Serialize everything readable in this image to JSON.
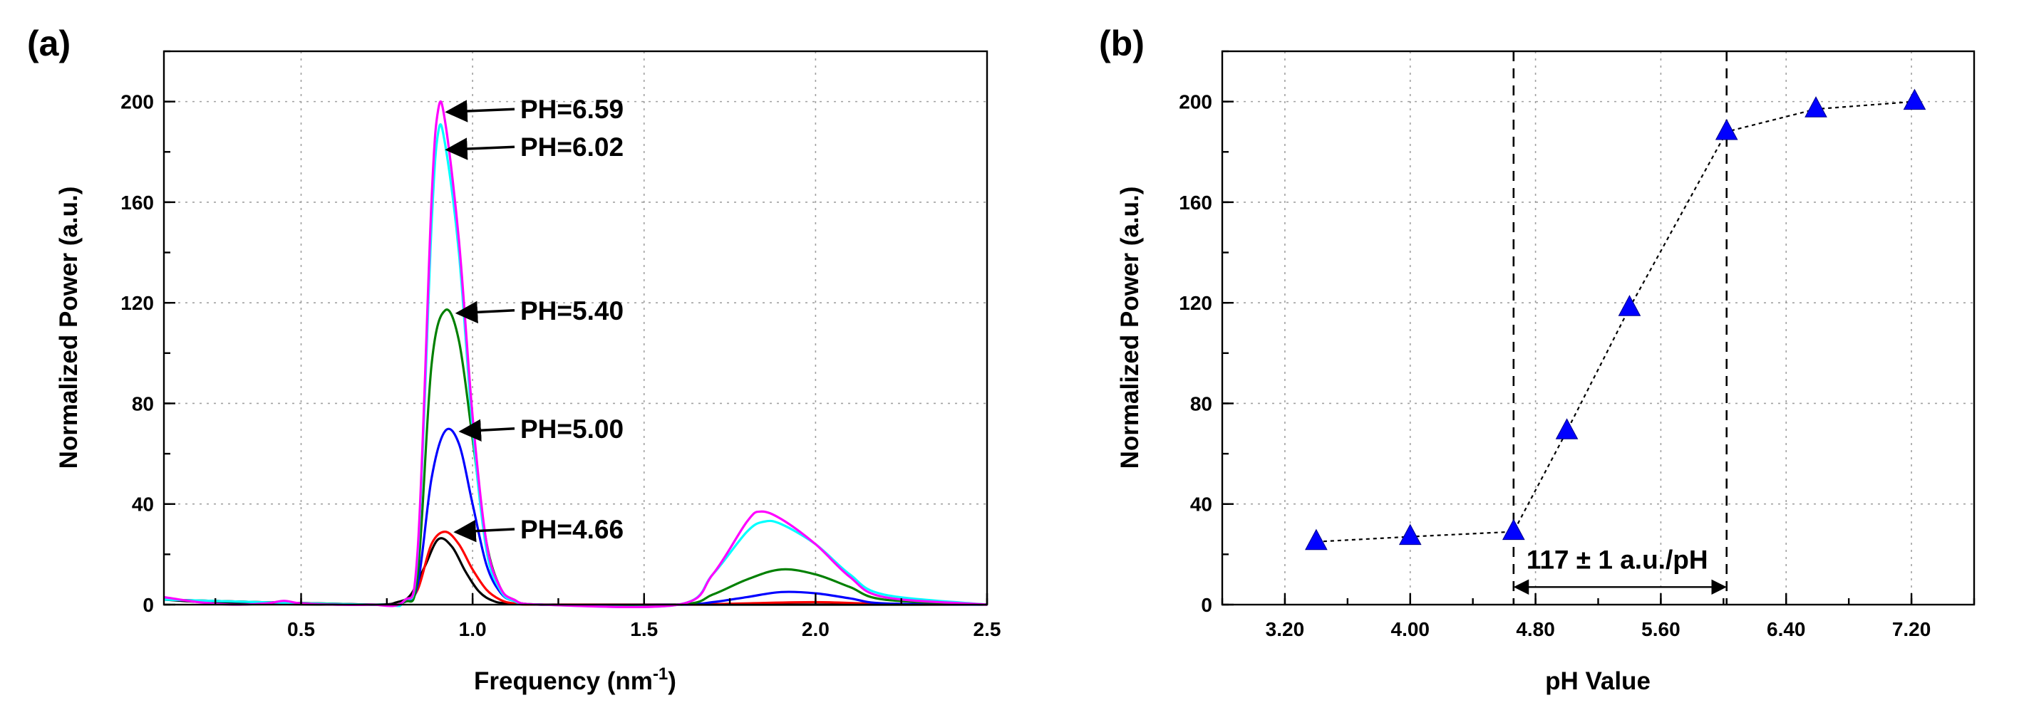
{
  "chart_data": [
    {
      "panel": "(a)",
      "type": "line",
      "title": "",
      "xlabel": "Frequency (nm",
      "xlabel_sup": "-1",
      "xlabel_end": ")",
      "ylabel": "Normalized Power (a.u.)",
      "xlim": [
        0.1,
        2.5
      ],
      "ylim": [
        0,
        220
      ],
      "xticks": [
        0.5,
        1.0,
        1.5,
        2.0,
        2.5
      ],
      "xtick_labels": [
        "0.5",
        "1.0",
        "1.5",
        "2.0",
        "2.5"
      ],
      "yticks": [
        0,
        40,
        80,
        120,
        160,
        200
      ],
      "ytick_labels": [
        "0",
        "40",
        "80",
        "120",
        "160",
        "200"
      ],
      "grid": true,
      "series": [
        {
          "name": "black",
          "color": "#000000",
          "x": [
            0.1,
            0.3,
            0.7,
            0.78,
            0.82,
            0.86,
            0.9,
            0.94,
            0.98,
            1.02,
            1.06,
            1.1,
            1.2,
            1.6,
            2.5
          ],
          "y": [
            2,
            0.5,
            0,
            1,
            4,
            15,
            26,
            23,
            13,
            5,
            1.5,
            0.5,
            0,
            0,
            0
          ]
        },
        {
          "name": "red",
          "color": "#ff0000",
          "x": [
            0.1,
            0.7,
            0.8,
            0.84,
            0.88,
            0.92,
            0.96,
            1.0,
            1.04,
            1.08,
            1.12,
            1.2,
            1.6,
            1.8,
            2.0,
            2.2,
            2.5
          ],
          "y": [
            2,
            0,
            1,
            6,
            24,
            29,
            24,
            14,
            6,
            2,
            0.5,
            0,
            0,
            0.5,
            1,
            0.3,
            0
          ]
        },
        {
          "name": "blue",
          "color": "#0000ff",
          "x": [
            0.1,
            0.7,
            0.8,
            0.84,
            0.88,
            0.92,
            0.96,
            1.0,
            1.04,
            1.08,
            1.12,
            1.2,
            1.6,
            1.7,
            1.8,
            1.9,
            2.0,
            2.1,
            2.2,
            2.5
          ],
          "y": [
            2,
            0,
            1,
            8,
            50,
            69,
            64,
            40,
            16,
            5,
            1.5,
            0,
            0,
            1,
            3,
            5,
            4.5,
            2.5,
            0.5,
            0
          ]
        },
        {
          "name": "green",
          "color": "#008000",
          "x": [
            0.1,
            0.7,
            0.8,
            0.84,
            0.88,
            0.92,
            0.96,
            1.0,
            1.04,
            1.08,
            1.12,
            1.2,
            1.6,
            1.7,
            1.8,
            1.9,
            2.0,
            2.1,
            2.2,
            2.5
          ],
          "y": [
            2,
            0,
            1,
            12,
            95,
            117,
            105,
            66,
            25,
            7,
            2,
            0,
            0,
            4,
            10,
            14,
            12,
            7,
            2,
            0
          ]
        },
        {
          "name": "cyan",
          "color": "#00ffff",
          "x": [
            0.1,
            0.7,
            0.8,
            0.84,
            0.88,
            0.9,
            0.92,
            0.96,
            1.0,
            1.04,
            1.08,
            1.12,
            1.2,
            1.6,
            1.7,
            1.8,
            1.85,
            1.9,
            2.0,
            2.1,
            2.2,
            2.5
          ],
          "y": [
            2,
            0,
            1.5,
            20,
            150,
            188,
            183,
            140,
            70,
            22,
            6,
            1.5,
            0,
            0,
            12,
            29,
            33,
            32,
            24,
            12,
            4,
            0
          ]
        },
        {
          "name": "magenta",
          "color": "#ff00ff",
          "x": [
            0.1,
            0.2,
            0.3,
            0.4,
            0.45,
            0.5,
            0.6,
            0.7,
            0.8,
            0.84,
            0.88,
            0.9,
            0.92,
            0.96,
            1.0,
            1.04,
            1.08,
            1.12,
            1.2,
            1.6,
            1.7,
            1.8,
            1.84,
            1.9,
            2.0,
            2.1,
            2.2,
            2.5
          ],
          "y": [
            3,
            1,
            0,
            0.5,
            1.5,
            0.5,
            0,
            0,
            1.5,
            22,
            160,
            197,
            192,
            145,
            75,
            25,
            7,
            2,
            0,
            0,
            12,
            33,
            37,
            34,
            24,
            11,
            3,
            0
          ]
        }
      ],
      "annotations": [
        {
          "text": "PH=6.59",
          "x": 0.905,
          "y": 197
        },
        {
          "text": "PH=6.02",
          "x": 0.905,
          "y": 182
        },
        {
          "text": "PH=5.40",
          "x": 0.935,
          "y": 117
        },
        {
          "text": "PH=5.00",
          "x": 0.945,
          "y": 70
        },
        {
          "text": "PH=4.66",
          "x": 0.93,
          "y": 30
        }
      ]
    },
    {
      "panel": "(b)",
      "type": "scatter",
      "title": "",
      "xlabel": "pH Value",
      "ylabel": "Normalized Power (a.u.)",
      "xlim": [
        2.8,
        7.6
      ],
      "ylim": [
        0,
        220
      ],
      "xticks": [
        3.2,
        4.0,
        4.8,
        5.6,
        6.4,
        7.2
      ],
      "xtick_labels": [
        "3.20",
        "4.00",
        "4.80",
        "5.60",
        "6.40",
        "7.20"
      ],
      "yticks": [
        0,
        40,
        80,
        120,
        160,
        200
      ],
      "ytick_labels": [
        "0",
        "40",
        "80",
        "120",
        "160",
        "200"
      ],
      "grid": true,
      "marker": "triangle",
      "marker_color": "#0000ff",
      "x": [
        3.4,
        4.0,
        4.66,
        5.0,
        5.4,
        6.02,
        6.59,
        7.22
      ],
      "y": [
        25,
        27,
        29,
        69,
        118,
        188,
        197,
        200
      ],
      "vlines": [
        4.66,
        6.02
      ],
      "arrow": {
        "from": 4.66,
        "to": 6.02,
        "y": 7
      },
      "annotation": "117  ± 1 a.u./pH"
    }
  ]
}
